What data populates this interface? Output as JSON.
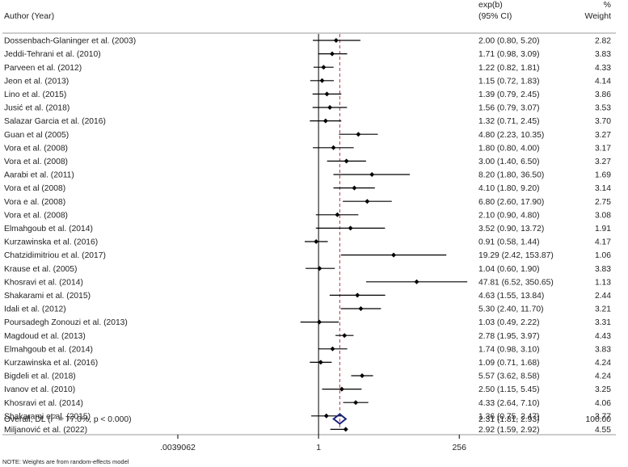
{
  "chart_data": {
    "type": "forest",
    "header": {
      "study": "Author (Year)",
      "effect_line1": "exp(b)",
      "effect_line2": "(95% CI)",
      "weight_line1": "%",
      "weight_line2": "Weight"
    },
    "x_scale": "log2",
    "xlim": [
      0.0039062,
      512
    ],
    "x_ticks": [
      {
        "value": 0.0039062,
        "label": ".0039062"
      },
      {
        "value": 1,
        "label": "1"
      },
      {
        "value": 256,
        "label": "256"
      }
    ],
    "null_line": 1,
    "pooled_line": 2.31,
    "studies": [
      {
        "label": "Dossenbach-Glaninger et al. (2003)",
        "est": 2.0,
        "lo": 0.8,
        "hi": 5.2,
        "ci_text": "2.00 (0.80, 5.20)",
        "weight": "2.82"
      },
      {
        "label": "Jeddi-Tehrani et al. (2010)",
        "est": 1.71,
        "lo": 0.98,
        "hi": 3.09,
        "ci_text": "1.71 (0.98, 3.09)",
        "weight": "3.83"
      },
      {
        "label": "Parveen et al. (2012)",
        "est": 1.22,
        "lo": 0.82,
        "hi": 1.81,
        "ci_text": "1.22 (0.82, 1.81)",
        "weight": "4.33"
      },
      {
        "label": "Jeon et al. (2013)",
        "est": 1.15,
        "lo": 0.72,
        "hi": 1.83,
        "ci_text": "1.15 (0.72, 1.83)",
        "weight": "4.14"
      },
      {
        "label": "Lino et al. (2015)",
        "est": 1.39,
        "lo": 0.79,
        "hi": 2.45,
        "ci_text": "1.39 (0.79, 2.45)",
        "weight": "3.86"
      },
      {
        "label": "Jusić et al. (2018)",
        "est": 1.56,
        "lo": 0.79,
        "hi": 3.07,
        "ci_text": "1.56 (0.79, 3.07)",
        "weight": "3.53"
      },
      {
        "label": "Salazar Garcia et al. (2016)",
        "est": 1.32,
        "lo": 0.71,
        "hi": 2.45,
        "ci_text": "1.32 (0.71, 2.45)",
        "weight": "3.70"
      },
      {
        "label": "Guan et al (2005)",
        "est": 4.8,
        "lo": 2.23,
        "hi": 10.35,
        "ci_text": "4.80 (2.23, 10.35)",
        "weight": "3.27"
      },
      {
        "label": "Vora et al. (2008)",
        "est": 1.8,
        "lo": 0.8,
        "hi": 4.0,
        "ci_text": "1.80 (0.80, 4.00)",
        "weight": "3.17"
      },
      {
        "label": "Vora et al. (2008)",
        "est": 3.0,
        "lo": 1.4,
        "hi": 6.5,
        "ci_text": "3.00 (1.40, 6.50)",
        "weight": "3.27"
      },
      {
        "label": "Aarabi et al. (2011)",
        "est": 8.2,
        "lo": 1.8,
        "hi": 36.5,
        "ci_text": "8.20 (1.80, 36.50)",
        "weight": "1.69"
      },
      {
        "label": "Vora et al  (2008)",
        "est": 4.1,
        "lo": 1.8,
        "hi": 9.2,
        "ci_text": "4.10 (1.80, 9.20)",
        "weight": "3.14"
      },
      {
        "label": "Vora e al. (2008)",
        "est": 6.8,
        "lo": 2.6,
        "hi": 17.9,
        "ci_text": "6.80 (2.60, 17.90)",
        "weight": "2.75"
      },
      {
        "label": "Vora et al. (2008)",
        "est": 2.1,
        "lo": 0.9,
        "hi": 4.8,
        "ci_text": "2.10 (0.90, 4.80)",
        "weight": "3.08"
      },
      {
        "label": "Elmahgoub et al. (2014)",
        "est": 3.52,
        "lo": 0.9,
        "hi": 13.72,
        "ci_text": "3.52 (0.90, 13.72)",
        "weight": "1.91"
      },
      {
        "label": "Kurzawinska et al. (2016)",
        "est": 0.91,
        "lo": 0.58,
        "hi": 1.44,
        "ci_text": "0.91 (0.58, 1.44)",
        "weight": "4.17"
      },
      {
        "label": "Chatzidimitriou et al. (2017)",
        "est": 19.29,
        "lo": 2.42,
        "hi": 153.87,
        "ci_text": "19.29 (2.42, 153.87)",
        "weight": "1.06"
      },
      {
        "label": "Krause et al. (2005)",
        "est": 1.04,
        "lo": 0.6,
        "hi": 1.9,
        "ci_text": "1.04 (0.60, 1.90)",
        "weight": "3.83"
      },
      {
        "label": "Khosravi et al. (2014)",
        "est": 47.81,
        "lo": 6.52,
        "hi": 350.65,
        "ci_text": "47.81 (6.52, 350.65)",
        "weight": "1.13"
      },
      {
        "label": "Shakarami et al. (2015)",
        "est": 4.63,
        "lo": 1.55,
        "hi": 13.84,
        "ci_text": "4.63 (1.55, 13.84)",
        "weight": "2.44"
      },
      {
        "label": "Idali et al. (2012)",
        "est": 5.3,
        "lo": 2.4,
        "hi": 11.7,
        "ci_text": "5.30 (2.40, 11.70)",
        "weight": "3.21"
      },
      {
        "label": "Poursadegh Zonouzi et al. (2013)",
        "est": 1.03,
        "lo": 0.49,
        "hi": 2.22,
        "ci_text": "1.03 (0.49, 2.22)",
        "weight": "3.31"
      },
      {
        "label": "Magdoud et al. (2013)",
        "est": 2.78,
        "lo": 1.95,
        "hi": 3.97,
        "ci_text": "2.78 (1.95, 3.97)",
        "weight": "4.43"
      },
      {
        "label": "Elmahgoub et al. (2014)",
        "est": 1.74,
        "lo": 0.98,
        "hi": 3.1,
        "ci_text": "1.74 (0.98, 3.10)",
        "weight": "3.83"
      },
      {
        "label": "Kurzawinska et al. (2016)",
        "est": 1.09,
        "lo": 0.71,
        "hi": 1.68,
        "ci_text": "1.09 (0.71, 1.68)",
        "weight": "4.24"
      },
      {
        "label": "Bigdeli et al. (2018)",
        "est": 5.57,
        "lo": 3.62,
        "hi": 8.58,
        "ci_text": "5.57 (3.62, 8.58)",
        "weight": "4.24"
      },
      {
        "label": "Ivanov et al. (2010)",
        "est": 2.5,
        "lo": 1.15,
        "hi": 5.45,
        "ci_text": "2.50 (1.15, 5.45)",
        "weight": "3.25"
      },
      {
        "label": "Khosravi et al. (2014)",
        "est": 4.33,
        "lo": 2.64,
        "hi": 7.1,
        "ci_text": "4.33 (2.64, 7.10)",
        "weight": "4.06"
      },
      {
        "label": "Shakarami et al. (2015)",
        "est": 1.36,
        "lo": 0.75,
        "hi": 2.47,
        "ci_text": "1.36 (0.75, 2.47)",
        "weight": "3.77"
      },
      {
        "label": "Miljanović et al. (2022)",
        "est": 2.92,
        "lo": 1.59,
        "hi": 2.92,
        "ci_text": "2.92 (1.59, 2.92)",
        "weight": "4.55"
      }
    ],
    "overall": {
      "label_prefix": "Overall, DL (I",
      "label_sup": "2",
      "label_suffix": " = 77.0%, p < 0.000)",
      "est": 2.31,
      "lo": 1.81,
      "hi": 2.93,
      "ci_text": "2.31 (1.81, 2.93)",
      "weight": "100.00"
    },
    "note": "NOTE: Weights are from random-effects model",
    "colors": {
      "text": "#222222",
      "marker": "#000000",
      "ci_line": "#000000",
      "null_line": "#000000",
      "pooled_line": "#b03a48",
      "diamond": "#1a237e",
      "rule": "#777777"
    }
  }
}
